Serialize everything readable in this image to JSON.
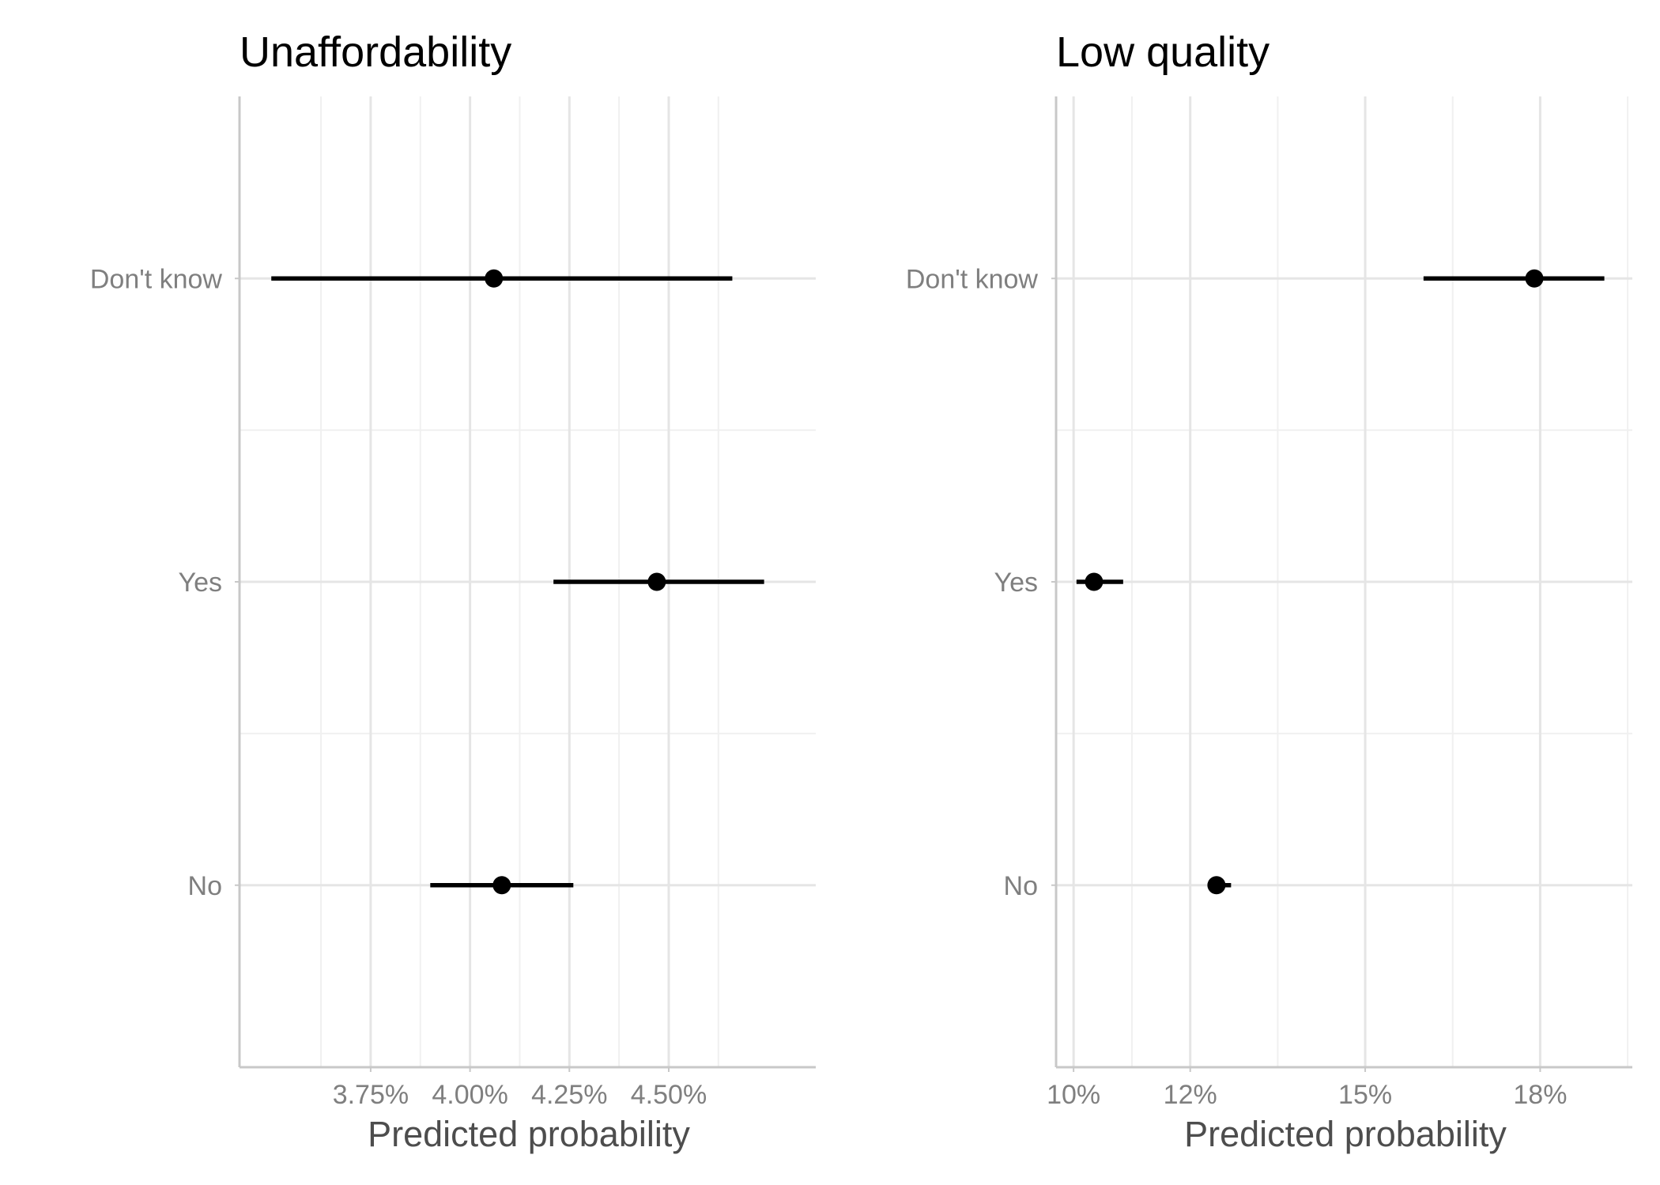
{
  "chart_data": [
    {
      "type": "pointrange",
      "title": "Unaffordability",
      "xlabel": "Predicted probability",
      "ylabel": "",
      "categories": [
        "No",
        "Yes",
        "Don't know"
      ],
      "x_ticks": [
        3.75,
        4.0,
        4.25,
        4.5
      ],
      "x_tick_labels": [
        "3.75%",
        "4.00%",
        "4.25%",
        "4.50%"
      ],
      "xlim": [
        3.42,
        4.87
      ],
      "points": [
        {
          "category": "Don't know",
          "estimate": 4.06,
          "lower": 3.5,
          "upper": 4.66
        },
        {
          "category": "Yes",
          "estimate": 4.47,
          "lower": 4.21,
          "upper": 4.74
        },
        {
          "category": "No",
          "estimate": 4.08,
          "lower": 3.9,
          "upper": 4.26
        }
      ],
      "grid": true
    },
    {
      "type": "pointrange",
      "title": "Low quality",
      "xlabel": "Predicted probability",
      "ylabel": "",
      "categories": [
        "No",
        "Yes",
        "Don't know"
      ],
      "x_ticks": [
        10,
        12,
        15,
        18
      ],
      "x_tick_labels": [
        "10%",
        "12%",
        "15%",
        "18%"
      ],
      "xlim": [
        9.7,
        19.58
      ],
      "points": [
        {
          "category": "Don't know",
          "estimate": 17.9,
          "lower": 16.0,
          "upper": 19.1
        },
        {
          "category": "Yes",
          "estimate": 10.35,
          "lower": 10.05,
          "upper": 10.85
        },
        {
          "category": "No",
          "estimate": 12.45,
          "lower": 12.3,
          "upper": 12.7
        }
      ],
      "grid": true
    }
  ]
}
